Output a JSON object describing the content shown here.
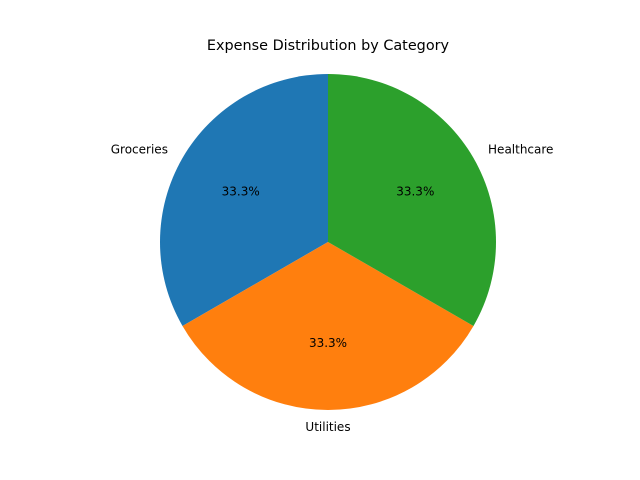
{
  "chart_data": {
    "type": "pie",
    "title": "Expense Distribution by Category",
    "categories": [
      "Groceries",
      "Utilities",
      "Healthcare"
    ],
    "values": [
      1,
      1,
      1
    ],
    "percent_labels": [
      "33.3%",
      "33.3%",
      "33.3%"
    ],
    "colors": [
      "#1f77b4",
      "#ff7f0e",
      "#2ca02c"
    ],
    "start_angle_deg": 90,
    "direction": "counterclockwise",
    "legend": "none"
  }
}
